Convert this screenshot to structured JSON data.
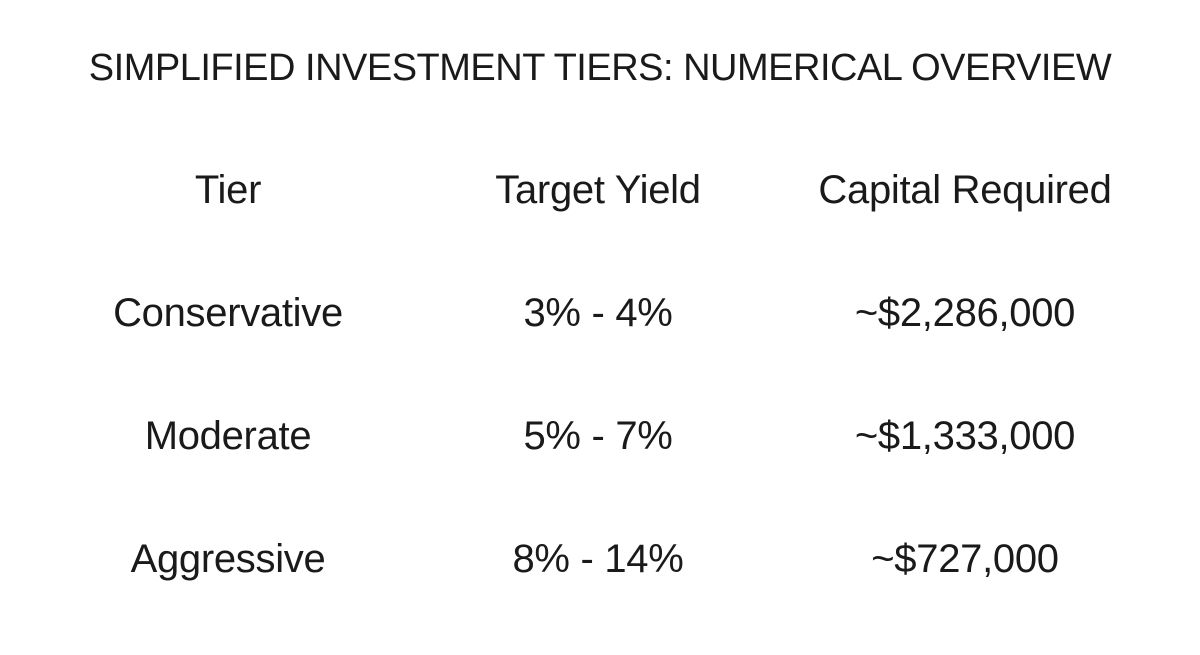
{
  "title": "SIMPLIFIED INVESTMENT TIERS: NUMERICAL OVERVIEW",
  "table": {
    "headers": [
      "Tier",
      "Target Yield",
      "Capital Required"
    ],
    "rows": [
      [
        "Conservative",
        "3% - 4%",
        "~$2,286,000"
      ],
      [
        "Moderate",
        "5% - 7%",
        "~$1,333,000"
      ],
      [
        "Aggressive",
        "8% - 14%",
        "~$727,000"
      ]
    ]
  }
}
